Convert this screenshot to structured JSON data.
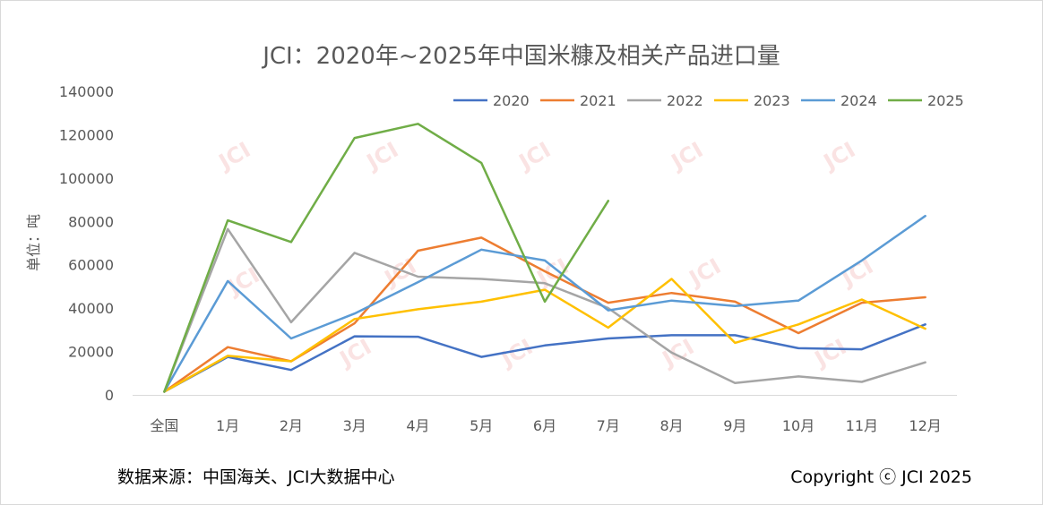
{
  "chart_data": {
    "type": "line",
    "title": "JCI：2020年~2025年中国米糠及相关产品进口量",
    "ylabel": "单位：吨",
    "xlabel": "",
    "ylim": [
      0,
      140000
    ],
    "yticks": [
      0,
      20000,
      40000,
      60000,
      80000,
      100000,
      120000,
      140000
    ],
    "categories": [
      "全国",
      "1月",
      "2月",
      "3月",
      "4月",
      "5月",
      "6月",
      "7月",
      "8月",
      "9月",
      "10月",
      "11月",
      "12月"
    ],
    "grid": "horizontal-baseline-only",
    "legend_position": "top-right",
    "series": [
      {
        "name": "2020",
        "color": "#4472c4",
        "values": [
          1500,
          17500,
          11500,
          27000,
          26800,
          17500,
          22800,
          26000,
          27500,
          27500,
          21500,
          21000,
          32500
        ]
      },
      {
        "name": "2021",
        "color": "#ed7d31",
        "values": [
          1500,
          22000,
          15500,
          33000,
          66500,
          72500,
          57000,
          42500,
          47000,
          43000,
          28500,
          42500,
          45000
        ]
      },
      {
        "name": "2022",
        "color": "#a5a5a5",
        "values": [
          1500,
          76500,
          33500,
          65500,
          54500,
          53500,
          51500,
          40000,
          19500,
          5500,
          8500,
          6000,
          15000
        ]
      },
      {
        "name": "2023",
        "color": "#ffc000",
        "values": [
          1500,
          18000,
          15500,
          35000,
          39500,
          43000,
          48500,
          31000,
          53500,
          24000,
          32500,
          44000,
          30500
        ]
      },
      {
        "name": "2024",
        "color": "#5b9bd5",
        "values": [
          1500,
          52500,
          26000,
          37500,
          52000,
          67000,
          62000,
          39000,
          43500,
          41000,
          43500,
          62000,
          82500
        ]
      },
      {
        "name": "2025",
        "color": "#70ad47",
        "values": [
          1500,
          80500,
          70500,
          118500,
          125000,
          107000,
          43000,
          89500,
          null,
          null,
          null,
          null,
          null
        ]
      }
    ]
  },
  "watermark": "JCI",
  "footer": {
    "source": "数据来源：中国海关、JCI大数据中心",
    "copyright": "Copyright ⓒ JCI  2025"
  }
}
